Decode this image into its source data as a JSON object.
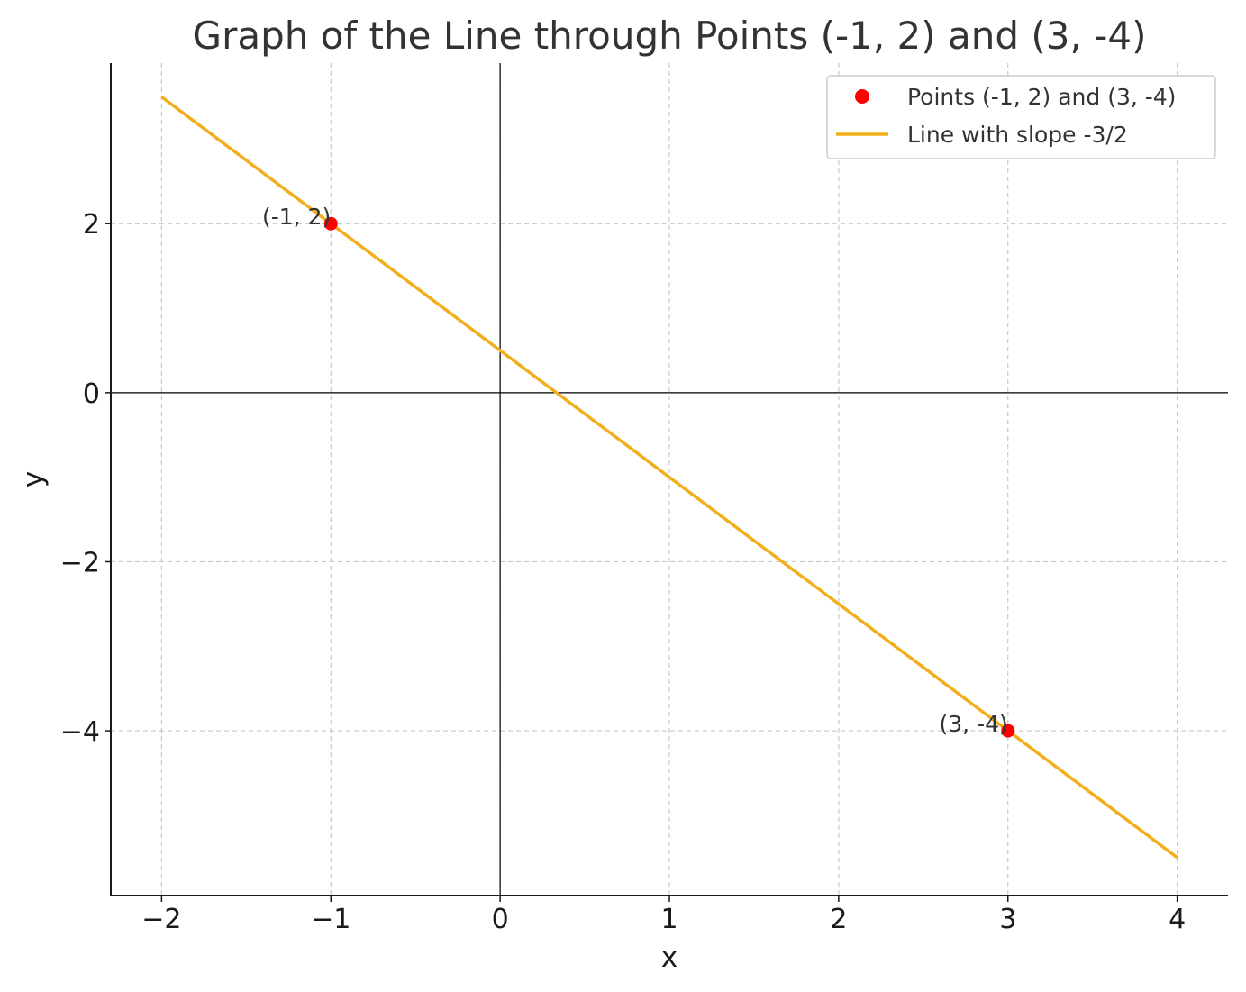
{
  "chart_data": {
    "type": "line",
    "title": "Graph of the Line through Points (-1, 2) and (3, -4)",
    "xlabel": "x",
    "ylabel": "y",
    "xlim": [
      -2.3,
      4.3
    ],
    "ylim": [
      -5.95,
      3.9
    ],
    "grid": true,
    "legend_position": "top-right",
    "xticks": [
      -2,
      -1,
      0,
      1,
      2,
      3,
      4
    ],
    "xtick_labels": [
      "−2",
      "−1",
      "0",
      "1",
      "2",
      "3",
      "4"
    ],
    "yticks": [
      -4,
      -2,
      0,
      2
    ],
    "ytick_labels": [
      "−4",
      "−2",
      "0",
      "2"
    ],
    "series": [
      {
        "name": "Points (-1, 2) and (3, -4)",
        "kind": "scatter",
        "color": "#ff0000",
        "points": [
          {
            "x": -1,
            "y": 2,
            "label": "(-1, 2)"
          },
          {
            "x": 3,
            "y": -4,
            "label": "(3, -4)"
          }
        ]
      },
      {
        "name": "Line with slope -3/2",
        "kind": "line",
        "color": "#f2ae1c",
        "x": [
          -2,
          4
        ],
        "y": [
          3.5,
          -5.5
        ]
      }
    ],
    "reference_lines": {
      "x": 0,
      "y": 0,
      "color": "#000000"
    }
  }
}
